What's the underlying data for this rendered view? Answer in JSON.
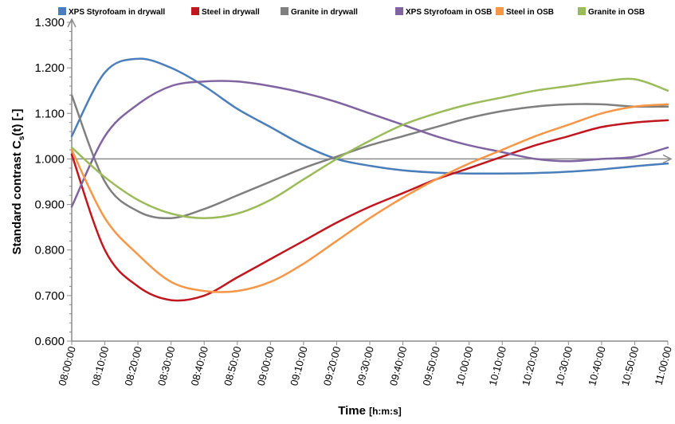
{
  "chart_data": {
    "type": "line",
    "title": "",
    "ylabel": {
      "main": "Standard contrast  C",
      "sub": "s",
      "tail": "(t) [-]"
    },
    "xlabel": {
      "main": "Time ",
      "unit": "[h:m:s]"
    },
    "ylim": [
      0.6,
      1.3
    ],
    "xlim_minutes": [
      0,
      180
    ],
    "grid": false,
    "legend_position": "top",
    "reference_line_y": 1.0,
    "y_ticks": [
      "0.600",
      "0.700",
      "0.800",
      "0.900",
      "1.000",
      "1.100",
      "1.200",
      "1.300"
    ],
    "x_ticks": [
      "08:00:00",
      "08:10:00",
      "08:20:00",
      "08:30:00",
      "08:40:00",
      "08:50:00",
      "09:00:00",
      "09:10:00",
      "09:20:00",
      "09:30:00",
      "09:40:00",
      "09:50:00",
      "10:00:00",
      "10:10:00",
      "10:20:00",
      "10:30:00",
      "10:40:00",
      "10:50:00",
      "11:00:00"
    ],
    "x": [
      "08:00:00",
      "08:10:00",
      "08:20:00",
      "08:30:00",
      "08:40:00",
      "08:50:00",
      "09:00:00",
      "09:10:00",
      "09:20:00",
      "09:30:00",
      "09:40:00",
      "09:50:00",
      "10:00:00",
      "10:10:00",
      "10:20:00",
      "10:30:00",
      "10:40:00",
      "10:50:00",
      "11:00:00"
    ],
    "series": [
      {
        "name": "XPS Styrofoam in drywall",
        "color": "#4a7ebb",
        "values": [
          1.05,
          1.19,
          1.22,
          1.2,
          1.16,
          1.11,
          1.07,
          1.03,
          1.0,
          0.985,
          0.975,
          0.97,
          0.968,
          0.968,
          0.969,
          0.972,
          0.977,
          0.984,
          0.99
        ]
      },
      {
        "name": "Steel in drywall",
        "color": "#c0161d",
        "values": [
          1.01,
          0.8,
          0.72,
          0.69,
          0.7,
          0.74,
          0.78,
          0.82,
          0.86,
          0.895,
          0.925,
          0.955,
          0.98,
          1.005,
          1.03,
          1.05,
          1.07,
          1.08,
          1.085
        ]
      },
      {
        "name": "Granite in drywall",
        "color": "#7f7f7f",
        "values": [
          1.14,
          0.95,
          0.885,
          0.87,
          0.89,
          0.92,
          0.95,
          0.98,
          1.005,
          1.03,
          1.05,
          1.07,
          1.09,
          1.105,
          1.115,
          1.12,
          1.12,
          1.115,
          1.115
        ]
      },
      {
        "name": "XPS Styrofoam in OSB",
        "color": "#8064a2",
        "values": [
          0.895,
          1.05,
          1.12,
          1.16,
          1.17,
          1.17,
          1.16,
          1.145,
          1.125,
          1.1,
          1.075,
          1.05,
          1.03,
          1.015,
          1.0,
          0.995,
          1.0,
          1.005,
          1.025
        ]
      },
      {
        "name": "Steel in OSB",
        "color": "#f79646",
        "values": [
          1.02,
          0.87,
          0.79,
          0.73,
          0.71,
          0.71,
          0.73,
          0.77,
          0.82,
          0.87,
          0.915,
          0.955,
          0.99,
          1.02,
          1.05,
          1.075,
          1.1,
          1.115,
          1.12
        ]
      },
      {
        "name": "Granite in OSB",
        "color": "#9bbb59",
        "values": [
          1.025,
          0.96,
          0.91,
          0.88,
          0.87,
          0.88,
          0.91,
          0.955,
          1.0,
          1.04,
          1.075,
          1.1,
          1.12,
          1.135,
          1.15,
          1.16,
          1.17,
          1.175,
          1.15
        ]
      }
    ]
  }
}
